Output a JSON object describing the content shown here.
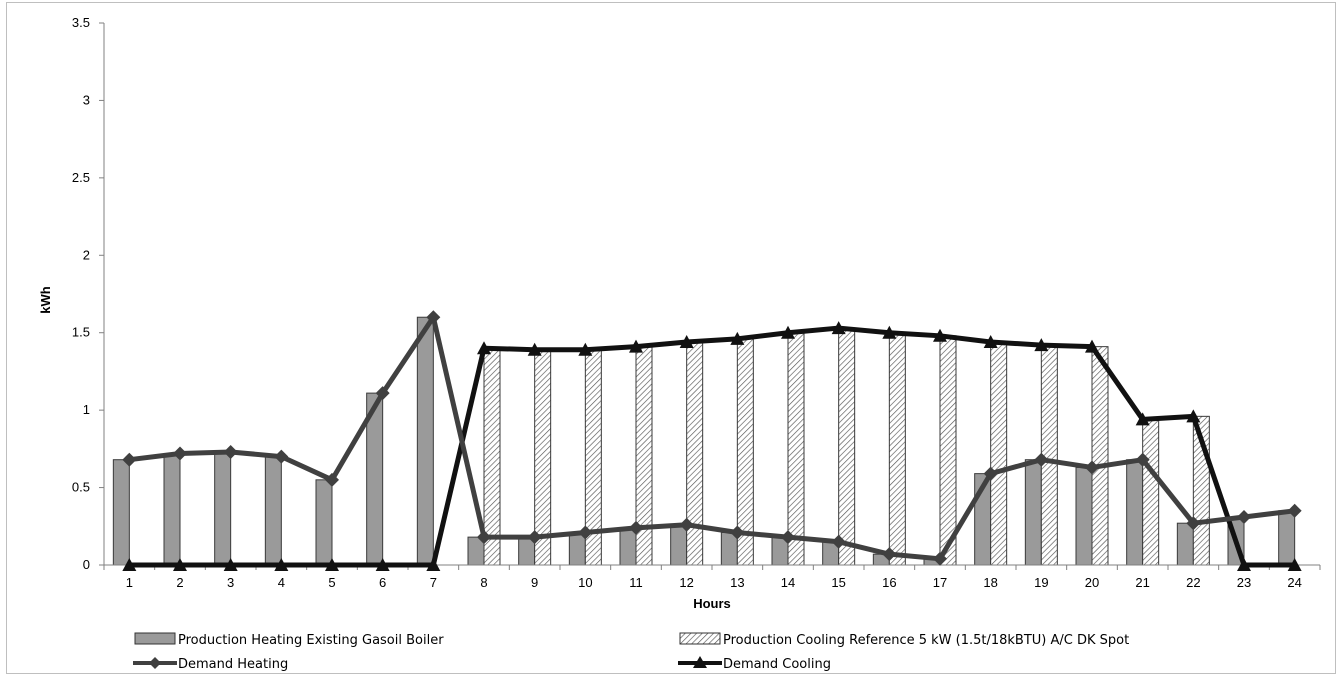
{
  "chart_data": {
    "type": "bar",
    "title": "",
    "xlabel": "Hours",
    "ylabel": "kWh",
    "ylim": [
      0,
      3.5
    ],
    "yticks": [
      "0",
      "0.5",
      "1",
      "1.5",
      "2",
      "2.5",
      "3",
      "3.5"
    ],
    "categories": [
      "1",
      "2",
      "3",
      "4",
      "5",
      "6",
      "7",
      "8",
      "9",
      "10",
      "11",
      "12",
      "13",
      "14",
      "15",
      "16",
      "17",
      "18",
      "19",
      "20",
      "21",
      "22",
      "23",
      "24"
    ],
    "grid": false,
    "legend_position": "bottom",
    "series": [
      {
        "name": "Production Heating Existing Gasoil Boiler",
        "kind": "bar",
        "pattern": "solid-gray",
        "color": "#9a9a9a",
        "values": [
          0.68,
          0.72,
          0.73,
          0.7,
          0.55,
          1.11,
          1.6,
          0.18,
          0.18,
          0.21,
          0.24,
          0.26,
          0.21,
          0.18,
          0.15,
          0.07,
          0.04,
          0.59,
          0.68,
          0.63,
          0.68,
          0.27,
          0.31,
          0.35
        ]
      },
      {
        "name": "Production Cooling Reference 5 kW (1.5t/18kBTU) A/C DK Spot",
        "kind": "bar",
        "pattern": "hatched",
        "color": "#ffffff",
        "values": [
          0,
          0,
          0,
          0,
          0,
          0,
          0,
          1.4,
          1.39,
          1.39,
          1.41,
          1.44,
          1.46,
          1.5,
          1.53,
          1.5,
          1.48,
          1.44,
          1.42,
          1.41,
          0.94,
          0.96,
          0,
          0
        ]
      },
      {
        "name": "Demand Heating",
        "kind": "line",
        "marker": "diamond",
        "color": "#404040",
        "values": [
          0.68,
          0.72,
          0.73,
          0.7,
          0.55,
          1.11,
          1.6,
          0.18,
          0.18,
          0.21,
          0.24,
          0.26,
          0.21,
          0.18,
          0.15,
          0.07,
          0.04,
          0.59,
          0.68,
          0.63,
          0.68,
          0.27,
          0.31,
          0.35
        ]
      },
      {
        "name": "Demand Cooling",
        "kind": "line",
        "marker": "triangle",
        "color": "#111111",
        "values": [
          0,
          0,
          0,
          0,
          0,
          0,
          0,
          1.4,
          1.39,
          1.39,
          1.41,
          1.44,
          1.46,
          1.5,
          1.53,
          1.5,
          1.48,
          1.44,
          1.42,
          1.41,
          0.94,
          0.96,
          0,
          0
        ]
      }
    ]
  }
}
